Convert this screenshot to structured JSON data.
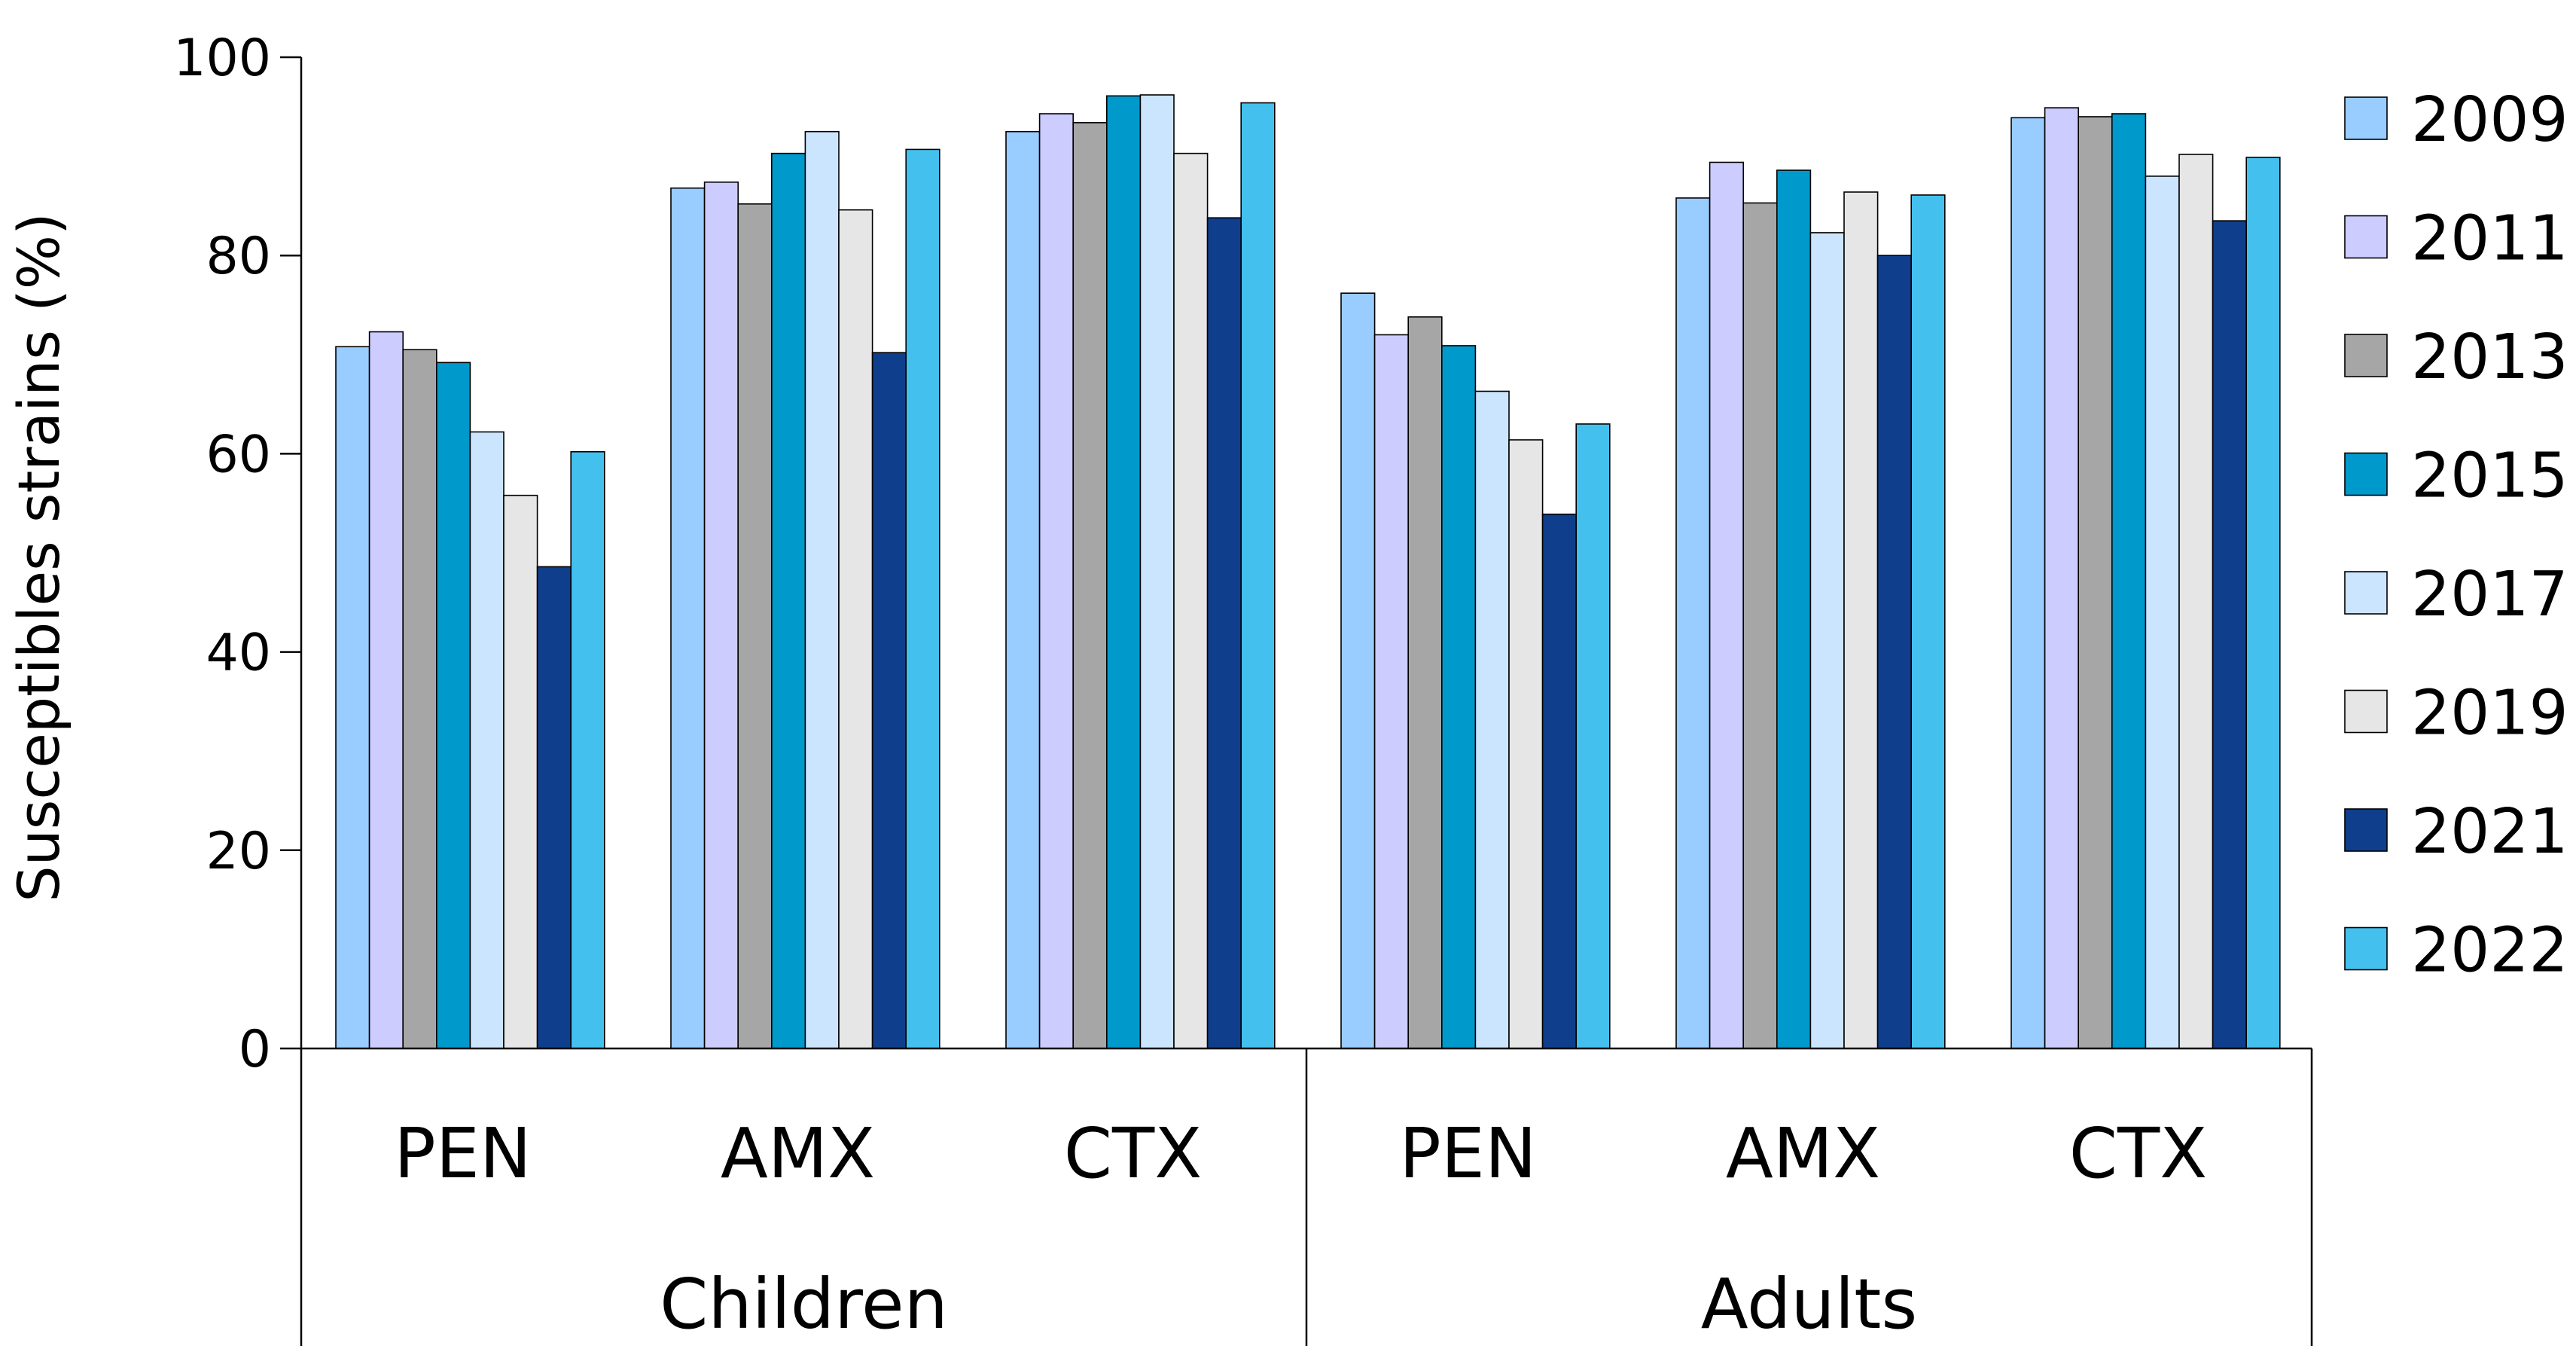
{
  "chart_data": {
    "type": "bar",
    "title": "",
    "xlabel": "",
    "ylabel": "Susceptibles strains (%)",
    "ylim": [
      0,
      100
    ],
    "yticks": [
      "0",
      "20",
      "40",
      "60",
      "80",
      "100"
    ],
    "grid": false,
    "legend_position": "right",
    "groups": [
      "Children",
      "Adults"
    ],
    "categories": [
      "PEN",
      "AMX",
      "CTX",
      "PEN",
      "AMX",
      "CTX"
    ],
    "series": [
      {
        "name": "2009",
        "color": "#99CCFF",
        "values": [
          70.8,
          86.8,
          92.5,
          76.2,
          85.8,
          93.9
        ]
      },
      {
        "name": "2011",
        "color": "#CCCCFF",
        "values": [
          72.3,
          87.4,
          94.3,
          72.0,
          89.4,
          94.9
        ]
      },
      {
        "name": "2013",
        "color": "#A6A6A6",
        "values": [
          70.5,
          85.2,
          93.4,
          73.8,
          85.3,
          94.0
        ]
      },
      {
        "name": "2015",
        "color": "#0099CC",
        "values": [
          69.2,
          90.3,
          96.1,
          70.9,
          88.6,
          94.3
        ]
      },
      {
        "name": "2017",
        "color": "#CCE5FF",
        "values": [
          62.2,
          92.5,
          96.2,
          66.3,
          82.3,
          88.0
        ]
      },
      {
        "name": "2019",
        "color": "#E6E6E6",
        "values": [
          55.8,
          84.6,
          90.3,
          61.4,
          86.4,
          90.2
        ]
      },
      {
        "name": "2021",
        "color": "#0F3F8C",
        "values": [
          48.6,
          70.2,
          83.8,
          53.9,
          80.0,
          83.5
        ]
      },
      {
        "name": "2022",
        "color": "#44C0EE",
        "values": [
          60.2,
          90.7,
          95.4,
          63.0,
          86.1,
          89.9
        ]
      }
    ]
  }
}
